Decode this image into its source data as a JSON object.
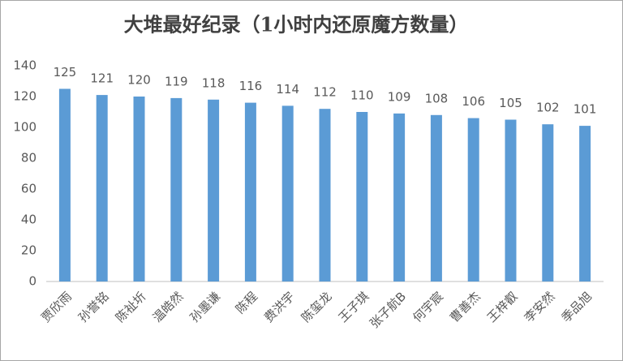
{
  "chart_data": {
    "type": "bar",
    "title": "大堆最好纪录（1小时内还原魔方数量）",
    "categories": [
      "贾欣雨",
      "孙誉铭",
      "陈祉圻",
      "温皓然",
      "孙墨谦",
      "陈程",
      "费洪宇",
      "陈玺龙",
      "王子琪",
      "张子航B",
      "何宇宸",
      "曹善杰",
      "王梓叡",
      "李安然",
      "季品旭"
    ],
    "values": [
      125,
      121,
      120,
      119,
      118,
      116,
      114,
      112,
      110,
      109,
      108,
      106,
      105,
      102,
      101
    ],
    "color": "#5b9bd5",
    "ylim": [
      0,
      140
    ],
    "yticks": [
      0,
      20,
      40,
      60,
      80,
      100,
      120,
      140
    ],
    "grid": false
  }
}
